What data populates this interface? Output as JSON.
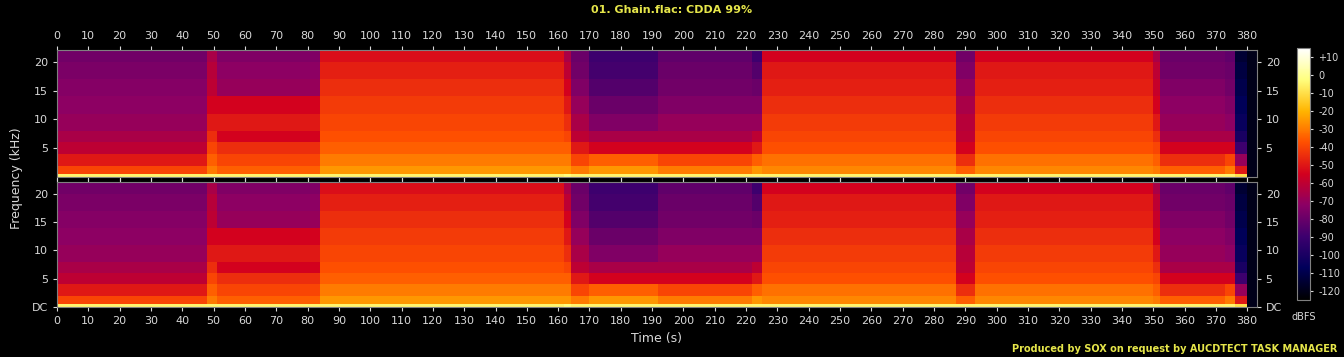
{
  "chart_data": {
    "type": "heatmap",
    "title": "01. Ghain.flac: CDDA 99%",
    "x_label": "Time (s)",
    "y_label": "Frequency (kHz)",
    "footer": "Produced by SOX on request by AUCDTECT TASK MANAGER",
    "xlim": [
      0,
      383
    ],
    "xticks": [
      0,
      10,
      20,
      30,
      40,
      50,
      60,
      70,
      80,
      90,
      100,
      110,
      120,
      130,
      140,
      150,
      160,
      170,
      180,
      190,
      200,
      210,
      220,
      230,
      240,
      250,
      260,
      270,
      280,
      290,
      300,
      310,
      320,
      330,
      340,
      350,
      360,
      370,
      380
    ],
    "ylim": [
      0,
      22.05
    ],
    "time_edges": [
      0,
      48,
      51,
      84,
      162,
      164,
      170,
      192,
      222,
      225,
      287,
      293,
      350,
      352,
      373,
      376,
      380,
      383
    ],
    "freq_edges": [
      0,
      0.5,
      2,
      4,
      6,
      8,
      11,
      14,
      17,
      20,
      22.05
    ],
    "channels": [
      {
        "yticks": [
          5,
          10,
          15,
          20
        ],
        "cells": [
          [
            -5,
            -5,
            -5,
            -5,
            -3,
            -5,
            -5,
            -5,
            -5,
            -5,
            -5,
            -5,
            -5,
            -5,
            -5,
            -10,
            -120
          ],
          [
            -40,
            -30,
            -35,
            -25,
            -25,
            -30,
            -25,
            -30,
            -25,
            -28,
            -35,
            -28,
            -30,
            -35,
            -30,
            -50,
            -120
          ],
          [
            -50,
            -35,
            -40,
            -30,
            -30,
            -40,
            -35,
            -40,
            -35,
            -32,
            -45,
            -32,
            -35,
            -45,
            -40,
            -70,
            -120
          ],
          [
            -60,
            -40,
            -45,
            -35,
            -35,
            -50,
            -55,
            -55,
            -50,
            -38,
            -55,
            -38,
            -40,
            -55,
            -55,
            -90,
            -120
          ],
          [
            -65,
            -45,
            -55,
            -38,
            -40,
            -60,
            -65,
            -65,
            -60,
            -40,
            -60,
            -40,
            -45,
            -65,
            -65,
            -100,
            -120
          ],
          [
            -70,
            -50,
            -50,
            -40,
            -45,
            -65,
            -75,
            -70,
            -70,
            -42,
            -62,
            -42,
            -50,
            -70,
            -72,
            -105,
            -120
          ],
          [
            -72,
            -55,
            -55,
            -42,
            -50,
            -70,
            -80,
            -75,
            -75,
            -45,
            -65,
            -45,
            -55,
            -72,
            -75,
            -108,
            -120
          ],
          [
            -74,
            -60,
            -70,
            -45,
            -55,
            -75,
            -85,
            -78,
            -80,
            -48,
            -70,
            -48,
            -58,
            -75,
            -78,
            -110,
            -120
          ],
          [
            -76,
            -62,
            -72,
            -48,
            -60,
            -78,
            -88,
            -80,
            -85,
            -50,
            -75,
            -50,
            -60,
            -78,
            -80,
            -112,
            -120
          ],
          [
            -78,
            -65,
            -75,
            -52,
            -65,
            -80,
            -90,
            -82,
            -90,
            -55,
            -78,
            -55,
            -65,
            -80,
            -82,
            -115,
            -120
          ]
        ]
      },
      {
        "yticks": [
          {
            "value": 0,
            "label": "DC"
          },
          5,
          10,
          15,
          20
        ],
        "cells": [
          [
            -5,
            -5,
            -5,
            -5,
            -3,
            -5,
            -5,
            -5,
            -5,
            -5,
            -5,
            -5,
            -5,
            -5,
            -5,
            -10,
            -120
          ],
          [
            -40,
            -30,
            -35,
            -25,
            -25,
            -30,
            -25,
            -30,
            -25,
            -28,
            -35,
            -28,
            -30,
            -35,
            -30,
            -50,
            -120
          ],
          [
            -50,
            -35,
            -40,
            -30,
            -30,
            -40,
            -35,
            -40,
            -35,
            -32,
            -45,
            -32,
            -35,
            -45,
            -40,
            -70,
            -120
          ],
          [
            -60,
            -40,
            -45,
            -35,
            -35,
            -50,
            -55,
            -55,
            -50,
            -38,
            -55,
            -38,
            -40,
            -55,
            -55,
            -90,
            -120
          ],
          [
            -65,
            -45,
            -55,
            -38,
            -40,
            -60,
            -65,
            -65,
            -60,
            -40,
            -60,
            -40,
            -45,
            -65,
            -65,
            -100,
            -120
          ],
          [
            -70,
            -50,
            -50,
            -40,
            -45,
            -65,
            -75,
            -70,
            -70,
            -42,
            -62,
            -42,
            -50,
            -70,
            -72,
            -105,
            -120
          ],
          [
            -72,
            -55,
            -55,
            -42,
            -50,
            -70,
            -80,
            -75,
            -75,
            -45,
            -65,
            -45,
            -55,
            -72,
            -75,
            -108,
            -120
          ],
          [
            -74,
            -60,
            -70,
            -45,
            -55,
            -75,
            -85,
            -78,
            -80,
            -48,
            -70,
            -48,
            -58,
            -75,
            -78,
            -110,
            -120
          ],
          [
            -76,
            -62,
            -72,
            -48,
            -60,
            -78,
            -88,
            -80,
            -85,
            -50,
            -75,
            -50,
            -60,
            -78,
            -80,
            -112,
            -120
          ],
          [
            -78,
            -65,
            -75,
            -52,
            -65,
            -80,
            -90,
            -82,
            -90,
            -55,
            -78,
            -55,
            -65,
            -80,
            -82,
            -115,
            -120
          ]
        ]
      }
    ],
    "colorbar": {
      "range": [
        -125,
        15
      ],
      "label": "dBFS",
      "ticks": [
        {
          "value": 10,
          "label": "+10"
        },
        0,
        -10,
        -20,
        -30,
        -40,
        -50,
        -60,
        -70,
        -80,
        -90,
        -100,
        -110,
        -120
      ]
    }
  }
}
